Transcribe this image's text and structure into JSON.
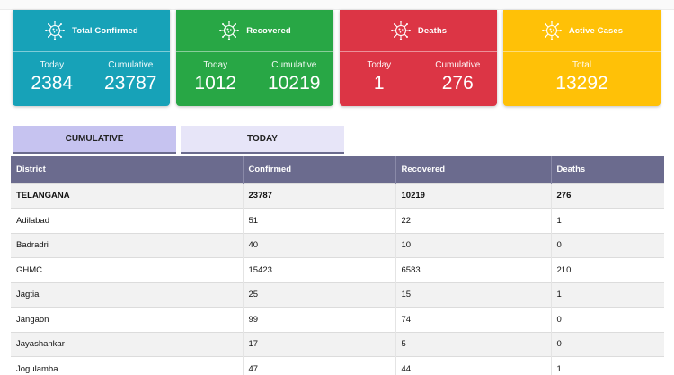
{
  "cards": {
    "confirmed": {
      "title": "Total Confirmed",
      "today_label": "Today",
      "today": "2384",
      "cumulative_label": "Cumulative",
      "cumulative": "23787",
      "color": "#17a2b8",
      "icon": "virus-icon"
    },
    "recovered": {
      "title": "Recovered",
      "today_label": "Today",
      "today": "1012",
      "cumulative_label": "Cumulative",
      "cumulative": "10219",
      "color": "#28a745",
      "icon": "virus-icon"
    },
    "deaths": {
      "title": "Deaths",
      "today_label": "Today",
      "today": "1",
      "cumulative_label": "Cumulative",
      "cumulative": "276",
      "color": "#dc3545",
      "icon": "virus-icon"
    },
    "active": {
      "title": "Active Cases",
      "total_label": "Total",
      "total": "13292",
      "color": "#ffc107",
      "icon": "virus-icon"
    }
  },
  "tabs": [
    {
      "label": "CUMULATIVE",
      "selected": true
    },
    {
      "label": "TODAY",
      "selected": false
    }
  ],
  "table": {
    "headers": [
      "District",
      "Confirmed",
      "Recovered",
      "Deaths"
    ],
    "rows": [
      [
        "TELANGANA",
        "23787",
        "10219",
        "276"
      ],
      [
        "Adilabad",
        "51",
        "22",
        "1"
      ],
      [
        "Badradri",
        "40",
        "10",
        "0"
      ],
      [
        "GHMC",
        "15423",
        "6583",
        "210"
      ],
      [
        "Jagtial",
        "25",
        "15",
        "1"
      ],
      [
        "Jangaon",
        "99",
        "74",
        "0"
      ],
      [
        "Jayashankar",
        "17",
        "5",
        "0"
      ],
      [
        "Jogulamba",
        "47",
        "44",
        "1"
      ]
    ]
  }
}
